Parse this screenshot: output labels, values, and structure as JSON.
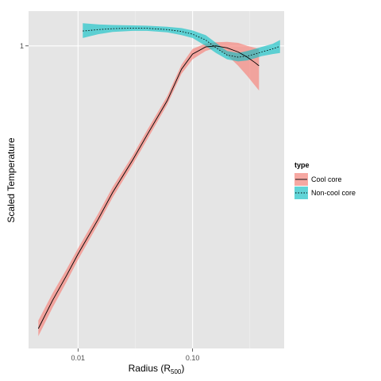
{
  "chart_data": {
    "type": "line",
    "xlabel": "Radius (R",
    "xlabel_sub": "500",
    "xlabel_close": ")",
    "ylabel": "Scaled Temperature",
    "x_scale": "log",
    "y_scale": "log",
    "xlim": [
      0.0037,
      0.63
    ],
    "ylim": [
      0.22,
      1.19
    ],
    "x_ticks": [
      {
        "value": 0.01,
        "label": "0.01"
      },
      {
        "value": 0.1,
        "label": "0.10"
      }
    ],
    "y_ticks": [
      {
        "value": 1,
        "label": "1"
      }
    ],
    "grid": true,
    "legend": {
      "title": "type",
      "position": "right"
    },
    "series": [
      {
        "name": "Cool core",
        "color": "#000000",
        "fill": "#f8766d",
        "dash": "solid",
        "x": [
          0.0045,
          0.006,
          0.008,
          0.01,
          0.015,
          0.02,
          0.03,
          0.04,
          0.06,
          0.08,
          0.1,
          0.13,
          0.16,
          0.2,
          0.25,
          0.3,
          0.35,
          0.38
        ],
        "y": [
          0.243,
          0.28,
          0.318,
          0.353,
          0.42,
          0.48,
          0.565,
          0.64,
          0.76,
          0.89,
          0.96,
          0.995,
          1.0,
          0.99,
          0.97,
          0.945,
          0.92,
          0.905
        ],
        "lower": [
          0.234,
          0.27,
          0.308,
          0.343,
          0.41,
          0.468,
          0.552,
          0.625,
          0.745,
          0.87,
          0.935,
          0.975,
          0.99,
          0.955,
          0.905,
          0.86,
          0.82,
          0.8
        ],
        "upper": [
          0.253,
          0.29,
          0.328,
          0.363,
          0.432,
          0.493,
          0.578,
          0.655,
          0.777,
          0.91,
          0.985,
          1.012,
          1.018,
          1.02,
          1.015,
          1.0,
          0.99,
          0.985
        ]
      },
      {
        "name": "Non-cool core",
        "color": "#000000",
        "fill": "#00bfc4",
        "dash": "dotted",
        "x": [
          0.011,
          0.015,
          0.02,
          0.03,
          0.04,
          0.06,
          0.08,
          0.1,
          0.13,
          0.16,
          0.2,
          0.25,
          0.3,
          0.35,
          0.4,
          0.5,
          0.58
        ],
        "y": [
          1.077,
          1.085,
          1.09,
          1.093,
          1.092,
          1.085,
          1.075,
          1.06,
          1.03,
          0.99,
          0.955,
          0.945,
          0.95,
          0.96,
          0.97,
          0.985,
          0.998
        ],
        "lower": [
          1.04,
          1.06,
          1.072,
          1.078,
          1.078,
          1.07,
          1.055,
          1.04,
          1.0,
          0.965,
          0.935,
          0.925,
          0.93,
          0.94,
          0.95,
          0.96,
          0.965
        ],
        "upper": [
          1.12,
          1.113,
          1.11,
          1.108,
          1.106,
          1.1,
          1.093,
          1.08,
          1.055,
          1.015,
          0.975,
          0.965,
          0.975,
          0.985,
          0.995,
          1.01,
          1.03
        ]
      }
    ]
  }
}
